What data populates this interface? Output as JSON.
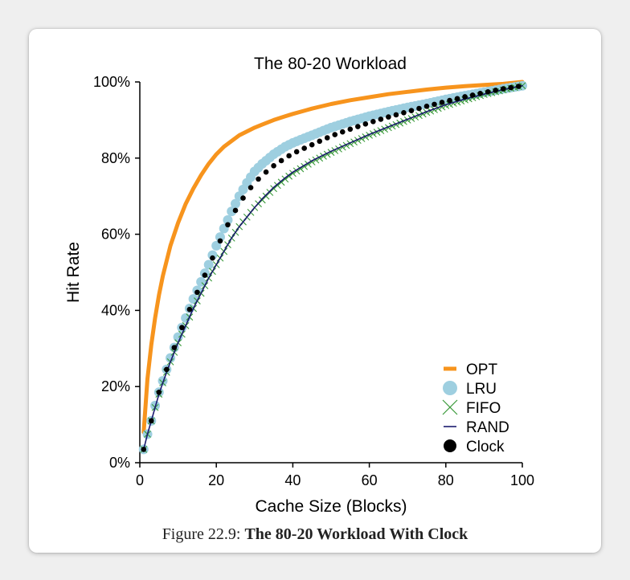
{
  "caption": {
    "prefix": "Figure 22.9:",
    "title": "The 80-20 Workload With Clock"
  },
  "chart_data": {
    "type": "line",
    "title": "The 80-20 Workload",
    "xlabel": "Cache Size (Blocks)",
    "ylabel": "Hit Rate",
    "xlim": [
      0,
      100
    ],
    "ylim": [
      0,
      100
    ],
    "xticks": [
      0,
      20,
      40,
      60,
      80,
      100
    ],
    "xtick_labels": [
      "0",
      "20",
      "40",
      "60",
      "80",
      "100"
    ],
    "yticks": [
      0,
      20,
      40,
      60,
      80,
      100
    ],
    "ytick_labels": [
      "0%",
      "20%",
      "40%",
      "60%",
      "80%",
      "100%"
    ],
    "legend_position": "bottom-right",
    "grid": false,
    "x": [
      1,
      2,
      3,
      4,
      5,
      6,
      8,
      10,
      12,
      14,
      16,
      18,
      20,
      22,
      24,
      26,
      28,
      30,
      32,
      35,
      38,
      40,
      45,
      50,
      55,
      60,
      65,
      70,
      75,
      80,
      85,
      90,
      95,
      100
    ],
    "series": [
      {
        "name": "OPT",
        "color": "#f7941d",
        "style": "line",
        "values": [
          8,
          22,
          31,
          38,
          44,
          49,
          57,
          63,
          68,
          72,
          75.5,
          78.5,
          81,
          83,
          84.5,
          86,
          87,
          88,
          88.8,
          90,
          91,
          91.6,
          93,
          94.2,
          95.2,
          96,
          96.8,
          97.4,
          98,
          98.5,
          98.9,
          99.2,
          99.5,
          100
        ]
      },
      {
        "name": "LRU",
        "color": "#9ecfe0",
        "style": "circle",
        "values": [
          3.5,
          7.5,
          11,
          15,
          18.5,
          21.5,
          27.5,
          33,
          38,
          43,
          47.5,
          52,
          57,
          61.5,
          66,
          70,
          73.5,
          76.5,
          78.5,
          81,
          83,
          84,
          86,
          88,
          89.6,
          91,
          92.2,
          93.3,
          94.3,
          95.4,
          96.4,
          97.3,
          98.2,
          99
        ]
      },
      {
        "name": "FIFO",
        "color": "#3a9a3a",
        "style": "x",
        "values": [
          3.5,
          7.5,
          11,
          14.5,
          18,
          21,
          26.5,
          31.5,
          36,
          40.5,
          44.5,
          48.5,
          52,
          55.5,
          59,
          62,
          64.5,
          67,
          69,
          72,
          74.5,
          76,
          79,
          81.5,
          83.8,
          86,
          88,
          90,
          92,
          93.8,
          95.3,
          96.7,
          97.9,
          99
        ]
      },
      {
        "name": "RAND",
        "color": "#1a1a6e",
        "style": "line",
        "values": [
          3.5,
          7.5,
          11,
          14.5,
          18,
          21,
          26.5,
          31.5,
          36,
          40.5,
          44.5,
          48.5,
          52,
          55.5,
          59,
          62,
          64.5,
          67,
          69.3,
          72.3,
          74.8,
          76.3,
          79.3,
          81.8,
          84,
          86.2,
          88.2,
          90.2,
          92.2,
          94,
          95.5,
          96.8,
          98,
          99
        ]
      },
      {
        "name": "Clock",
        "color": "#000000",
        "style": "dot",
        "values": [
          3.5,
          7.5,
          11,
          15,
          18.5,
          21.5,
          27.5,
          33,
          38,
          42.5,
          47,
          51.5,
          56,
          60.5,
          64.5,
          68,
          71,
          73.5,
          75.5,
          78,
          80,
          81.2,
          83.5,
          85.8,
          87.6,
          89.3,
          90.8,
          92.2,
          93.6,
          94.9,
          96.1,
          97.2,
          98.2,
          99
        ]
      }
    ]
  }
}
